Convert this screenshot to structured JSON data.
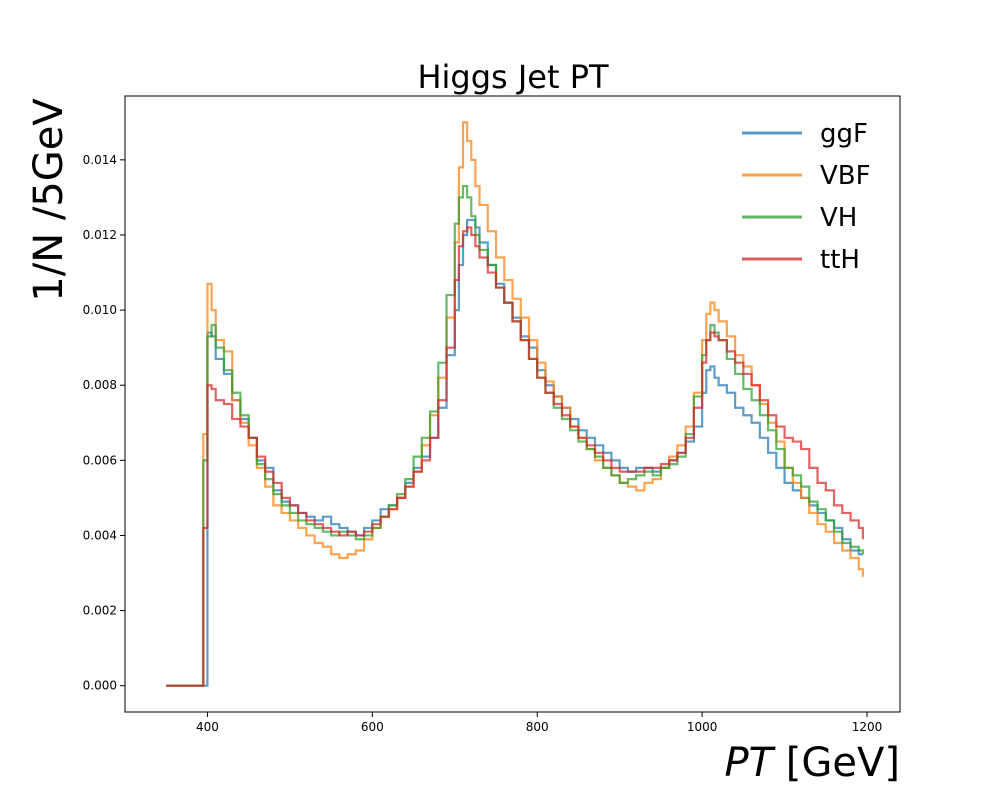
{
  "chart_data": {
    "type": "line",
    "style": "step-histogram",
    "title": "Higgs Jet PT",
    "xlabel_italic": "PT",
    "xlabel_unit": " [GeV]",
    "ylabel": "1/N /5GeV",
    "xlim": [
      300,
      1240
    ],
    "ylim": [
      -0.0007,
      0.0157
    ],
    "xticks": [
      400,
      600,
      800,
      1000,
      1200
    ],
    "yticks": [
      0.0,
      0.002,
      0.004,
      0.006,
      0.008,
      0.01,
      0.012,
      0.014
    ],
    "ytick_labels": [
      "0.000",
      "0.002",
      "0.004",
      "0.006",
      "0.008",
      "0.010",
      "0.012",
      "0.014"
    ],
    "grid": false,
    "legend_position": "top-right",
    "series": [
      {
        "name": "ggF",
        "color": "#1f77b4",
        "x": [
          350,
          395,
          400,
          405,
          410,
          420,
          430,
          440,
          450,
          460,
          470,
          480,
          490,
          500,
          510,
          520,
          530,
          540,
          550,
          560,
          570,
          580,
          590,
          600,
          610,
          620,
          630,
          640,
          650,
          660,
          670,
          680,
          690,
          700,
          705,
          710,
          715,
          720,
          725,
          730,
          740,
          750,
          760,
          770,
          780,
          790,
          800,
          810,
          820,
          830,
          840,
          850,
          860,
          870,
          880,
          890,
          900,
          910,
          920,
          930,
          940,
          950,
          960,
          970,
          980,
          990,
          1000,
          1005,
          1010,
          1015,
          1020,
          1030,
          1040,
          1050,
          1060,
          1070,
          1080,
          1090,
          1100,
          1110,
          1120,
          1130,
          1140,
          1150,
          1160,
          1170,
          1180,
          1190,
          1195
        ],
        "y": [
          0.0,
          0.0,
          0.0094,
          0.0093,
          0.0087,
          0.0083,
          0.0076,
          0.0071,
          0.0066,
          0.006,
          0.0058,
          0.0052,
          0.0049,
          0.0048,
          0.0046,
          0.0045,
          0.0044,
          0.0045,
          0.0043,
          0.0042,
          0.0041,
          0.004,
          0.0042,
          0.0044,
          0.0047,
          0.0048,
          0.005,
          0.0054,
          0.0058,
          0.0061,
          0.0066,
          0.0074,
          0.0088,
          0.01,
          0.0112,
          0.012,
          0.0124,
          0.0124,
          0.0122,
          0.0118,
          0.0112,
          0.0107,
          0.0102,
          0.0098,
          0.0093,
          0.009,
          0.0084,
          0.008,
          0.0077,
          0.0074,
          0.0071,
          0.0068,
          0.0066,
          0.0064,
          0.0062,
          0.006,
          0.0058,
          0.0057,
          0.0058,
          0.0058,
          0.0057,
          0.0058,
          0.006,
          0.0062,
          0.0065,
          0.0069,
          0.0078,
          0.0084,
          0.0085,
          0.0082,
          0.008,
          0.0078,
          0.0074,
          0.0072,
          0.007,
          0.0066,
          0.0062,
          0.0058,
          0.0054,
          0.0052,
          0.005,
          0.0048,
          0.0046,
          0.0044,
          0.0042,
          0.0039,
          0.0036,
          0.0035,
          0.0035
        ]
      },
      {
        "name": "VBF",
        "color": "#ff7f0e",
        "x": [
          350,
          395,
          400,
          405,
          410,
          420,
          430,
          440,
          450,
          460,
          470,
          480,
          490,
          500,
          510,
          520,
          530,
          540,
          550,
          560,
          570,
          580,
          590,
          600,
          610,
          620,
          630,
          640,
          650,
          660,
          670,
          680,
          690,
          700,
          705,
          710,
          715,
          720,
          725,
          730,
          740,
          750,
          760,
          770,
          780,
          790,
          800,
          810,
          820,
          830,
          840,
          850,
          860,
          870,
          880,
          890,
          900,
          910,
          920,
          930,
          940,
          950,
          960,
          970,
          980,
          990,
          1000,
          1005,
          1010,
          1015,
          1020,
          1030,
          1040,
          1050,
          1060,
          1070,
          1080,
          1090,
          1100,
          1110,
          1120,
          1130,
          1140,
          1150,
          1160,
          1170,
          1180,
          1190,
          1195
        ],
        "y": [
          0.0,
          0.0067,
          0.0107,
          0.01,
          0.0092,
          0.0089,
          0.0076,
          0.007,
          0.0064,
          0.0058,
          0.0053,
          0.0048,
          0.0046,
          0.0044,
          0.0042,
          0.004,
          0.0038,
          0.0037,
          0.0035,
          0.0034,
          0.0035,
          0.0036,
          0.0039,
          0.0042,
          0.0045,
          0.0047,
          0.005,
          0.0053,
          0.0057,
          0.0064,
          0.0072,
          0.0082,
          0.0098,
          0.0118,
          0.0138,
          0.015,
          0.0145,
          0.014,
          0.0133,
          0.0128,
          0.0121,
          0.0114,
          0.0108,
          0.0103,
          0.0098,
          0.0092,
          0.0086,
          0.0081,
          0.0077,
          0.0074,
          0.0069,
          0.0066,
          0.0063,
          0.006,
          0.0058,
          0.0056,
          0.0054,
          0.0053,
          0.0052,
          0.0054,
          0.0055,
          0.0058,
          0.0061,
          0.0064,
          0.0069,
          0.0078,
          0.0092,
          0.0099,
          0.0102,
          0.01,
          0.0097,
          0.0093,
          0.0088,
          0.0085,
          0.008,
          0.0075,
          0.007,
          0.0065,
          0.0058,
          0.0054,
          0.005,
          0.0046,
          0.0043,
          0.0041,
          0.0038,
          0.0036,
          0.0034,
          0.0031,
          0.0029
        ]
      },
      {
        "name": "VH",
        "color": "#2ca02c",
        "x": [
          350,
          395,
          400,
          405,
          410,
          420,
          430,
          440,
          450,
          460,
          470,
          480,
          490,
          500,
          510,
          520,
          530,
          540,
          550,
          560,
          570,
          580,
          590,
          600,
          610,
          620,
          630,
          640,
          650,
          660,
          670,
          680,
          690,
          700,
          705,
          710,
          715,
          720,
          725,
          730,
          740,
          750,
          760,
          770,
          780,
          790,
          800,
          810,
          820,
          830,
          840,
          850,
          860,
          870,
          880,
          890,
          900,
          910,
          920,
          930,
          940,
          950,
          960,
          970,
          980,
          990,
          1000,
          1005,
          1010,
          1015,
          1020,
          1030,
          1040,
          1050,
          1060,
          1070,
          1080,
          1090,
          1100,
          1110,
          1120,
          1130,
          1140,
          1150,
          1160,
          1170,
          1180,
          1190,
          1195
        ],
        "y": [
          0.0,
          0.006,
          0.0093,
          0.0096,
          0.009,
          0.0084,
          0.0078,
          0.0072,
          0.0066,
          0.0059,
          0.0055,
          0.0051,
          0.0048,
          0.0046,
          0.0044,
          0.0043,
          0.0042,
          0.0041,
          0.004,
          0.0041,
          0.004,
          0.0039,
          0.004,
          0.0042,
          0.0045,
          0.0048,
          0.0051,
          0.0055,
          0.0061,
          0.0066,
          0.0073,
          0.0086,
          0.0104,
          0.0123,
          0.013,
          0.0133,
          0.013,
          0.0125,
          0.012,
          0.0116,
          0.0112,
          0.0106,
          0.0102,
          0.0097,
          0.0092,
          0.0087,
          0.0082,
          0.0078,
          0.0074,
          0.0071,
          0.0068,
          0.0065,
          0.0063,
          0.0061,
          0.0058,
          0.0056,
          0.0054,
          0.0055,
          0.0056,
          0.0057,
          0.0056,
          0.0058,
          0.0059,
          0.0061,
          0.0067,
          0.0077,
          0.0088,
          0.0092,
          0.0096,
          0.0094,
          0.0092,
          0.0087,
          0.0083,
          0.0079,
          0.0076,
          0.0072,
          0.0068,
          0.0063,
          0.0058,
          0.0056,
          0.0053,
          0.0049,
          0.0047,
          0.0044,
          0.0041,
          0.0038,
          0.0037,
          0.0036,
          0.0035
        ]
      },
      {
        "name": "ttH",
        "color": "#d62728",
        "x": [
          350,
          395,
          400,
          405,
          410,
          420,
          430,
          440,
          450,
          460,
          470,
          480,
          490,
          500,
          510,
          520,
          530,
          540,
          550,
          560,
          570,
          580,
          590,
          600,
          610,
          620,
          630,
          640,
          650,
          660,
          670,
          680,
          690,
          700,
          705,
          710,
          715,
          720,
          725,
          730,
          740,
          750,
          760,
          770,
          780,
          790,
          800,
          810,
          820,
          830,
          840,
          850,
          860,
          870,
          880,
          890,
          900,
          910,
          920,
          930,
          940,
          950,
          960,
          970,
          980,
          990,
          1000,
          1005,
          1010,
          1015,
          1020,
          1030,
          1040,
          1050,
          1060,
          1070,
          1080,
          1090,
          1100,
          1110,
          1120,
          1130,
          1140,
          1150,
          1160,
          1170,
          1180,
          1190,
          1195
        ],
        "y": [
          0.0,
          0.0042,
          0.008,
          0.0079,
          0.0076,
          0.0075,
          0.0071,
          0.0069,
          0.0066,
          0.0061,
          0.0057,
          0.0054,
          0.005,
          0.0048,
          0.0046,
          0.0044,
          0.0043,
          0.0042,
          0.0041,
          0.004,
          0.0041,
          0.004,
          0.0041,
          0.0043,
          0.0045,
          0.0047,
          0.005,
          0.0053,
          0.0057,
          0.006,
          0.0066,
          0.0076,
          0.009,
          0.0108,
          0.0117,
          0.0121,
          0.0122,
          0.012,
          0.0117,
          0.0114,
          0.011,
          0.0106,
          0.0102,
          0.0097,
          0.0092,
          0.0087,
          0.0082,
          0.0078,
          0.0075,
          0.0072,
          0.0069,
          0.0066,
          0.0064,
          0.0062,
          0.006,
          0.0058,
          0.0057,
          0.0057,
          0.0057,
          0.0058,
          0.0058,
          0.0059,
          0.006,
          0.0062,
          0.0066,
          0.0074,
          0.0086,
          0.0092,
          0.0094,
          0.0093,
          0.0092,
          0.0089,
          0.0086,
          0.0083,
          0.008,
          0.0076,
          0.0072,
          0.0069,
          0.0066,
          0.0065,
          0.0063,
          0.0058,
          0.0054,
          0.0052,
          0.0048,
          0.0046,
          0.0044,
          0.0042,
          0.0039
        ]
      }
    ]
  }
}
